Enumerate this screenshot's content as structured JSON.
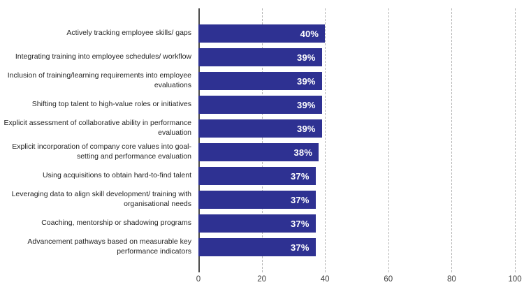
{
  "chart_data": {
    "type": "bar",
    "orientation": "horizontal",
    "title": "",
    "xlabel": "",
    "ylabel": "",
    "categories": [
      "Actively tracking employee skills/ gaps",
      "Integrating training into employee schedules/ workflow",
      "Inclusion of training/learning requirements into employee evaluations",
      "Shifting top talent to high-value roles or initiatives",
      "Explicit assessment of collaborative ability in performance evaluation",
      "Explicit incorporation of company core values into goal-setting and performance evaluation",
      "Using acquisitions to obtain hard-to-find talent",
      "Leveraging data to align skill development/ training with organisational needs",
      "Coaching, mentorship or shadowing programs",
      "Advancement pathways based on measurable key performance indicators"
    ],
    "values": [
      40,
      39,
      39,
      39,
      39,
      38,
      37,
      37,
      37,
      37
    ],
    "value_labels": [
      "40%",
      "39%",
      "39%",
      "39%",
      "39%",
      "38%",
      "37%",
      "37%",
      "37%",
      "37%"
    ],
    "xlim": [
      0,
      100
    ],
    "x_ticks": [
      0,
      20,
      40,
      60,
      80,
      100
    ],
    "x_tick_labels": [
      "0",
      "20",
      "40",
      "60",
      "80",
      "100"
    ],
    "grid": "vertical-dashed",
    "legend": "none",
    "colors": {
      "bar": "#2e3192",
      "bar_value_text": "#ffffff",
      "category_text": "#242424",
      "tick_text": "#3c3c3c",
      "gridline": "#b5b5b5",
      "axis_line": "#4a4a4a",
      "background": "#ffffff"
    }
  }
}
